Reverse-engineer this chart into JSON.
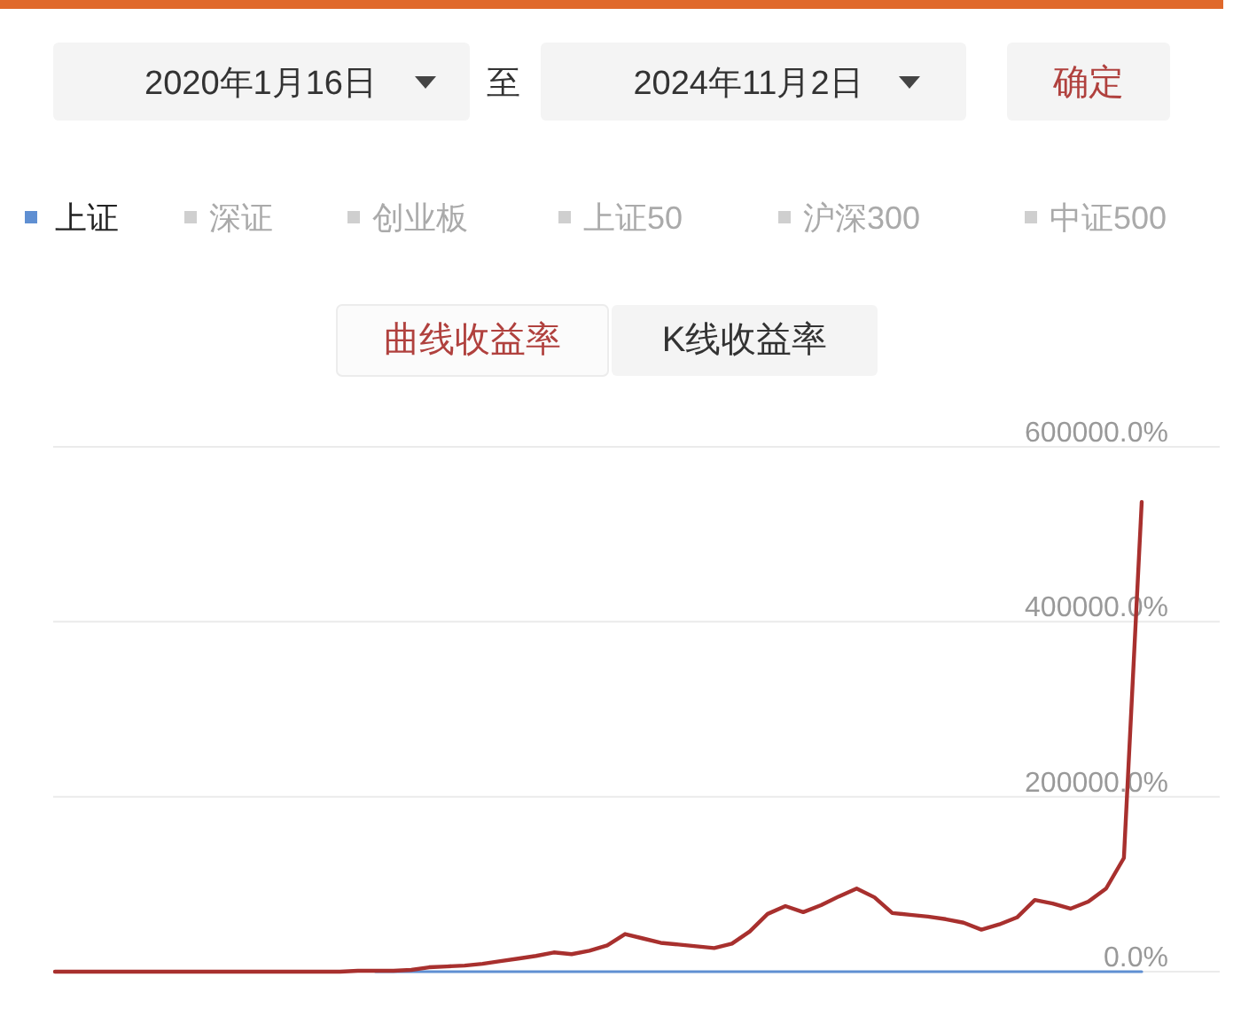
{
  "chart_data": {
    "type": "line",
    "categories": [
      null,
      null,
      null,
      null,
      null,
      null,
      null,
      null,
      null,
      null,
      null,
      null,
      null,
      null,
      null,
      null,
      null,
      null,
      null,
      null,
      null,
      null,
      null,
      null,
      null,
      null,
      null,
      null,
      null,
      null,
      null,
      null,
      null,
      null,
      null,
      null,
      null,
      null,
      null,
      null,
      null,
      null,
      null,
      null,
      null,
      null,
      null,
      null,
      null,
      null,
      null,
      null,
      null,
      null,
      null,
      null,
      null,
      null,
      null,
      null,
      null,
      null
    ],
    "series": [
      {
        "color": "#a8302e",
        "values": [
          0,
          0,
          0,
          0,
          0,
          0,
          0,
          0,
          0,
          0,
          0,
          0,
          0,
          0,
          0,
          0,
          0,
          1000,
          1000,
          1000,
          2000,
          5000,
          6000,
          7000,
          9000,
          12000,
          15000,
          18000,
          22000,
          20000,
          24000,
          30000,
          43000,
          38000,
          33000,
          31000,
          29000,
          27000,
          32000,
          46000,
          66000,
          75000,
          68000,
          76000,
          86000,
          95000,
          85000,
          67000,
          65000,
          63000,
          60000,
          56000,
          48000,
          54000,
          62000,
          82000,
          78000,
          72000,
          80000,
          95000,
          130000,
          537000
        ]
      },
      {
        "name": "上证",
        "color": "#5f8fd2",
        "values": [
          null,
          null,
          null,
          null,
          null,
          null,
          null,
          null,
          null,
          null,
          null,
          null,
          null,
          null,
          null,
          null,
          null,
          null,
          0,
          0,
          0,
          0,
          0,
          0,
          0,
          0,
          0,
          0,
          0,
          0,
          0,
          0,
          0,
          0,
          0,
          0,
          0,
          0,
          0,
          0,
          0,
          0,
          0,
          0,
          0,
          0,
          0,
          0,
          0,
          0,
          0,
          0,
          0,
          0,
          0,
          0,
          0,
          0,
          0,
          0,
          0,
          0
        ]
      }
    ],
    "ylim": [
      0,
      600000
    ],
    "yticks": [
      {
        "value": 0,
        "label": "0.0%"
      },
      {
        "value": 200000,
        "label": "200000.0%"
      },
      {
        "value": 400000,
        "label": "400000.0%"
      },
      {
        "value": 600000,
        "label": "600000.0%"
      }
    ],
    "grid": "y",
    "legend": "top",
    "annotations": [
      "2020年1月16日",
      "至",
      "2024年11月2日",
      "确定",
      "深证",
      "创业板",
      "上证50",
      "沪深300",
      "中证500",
      "曲线收益率",
      "K线收益率"
    ]
  }
}
